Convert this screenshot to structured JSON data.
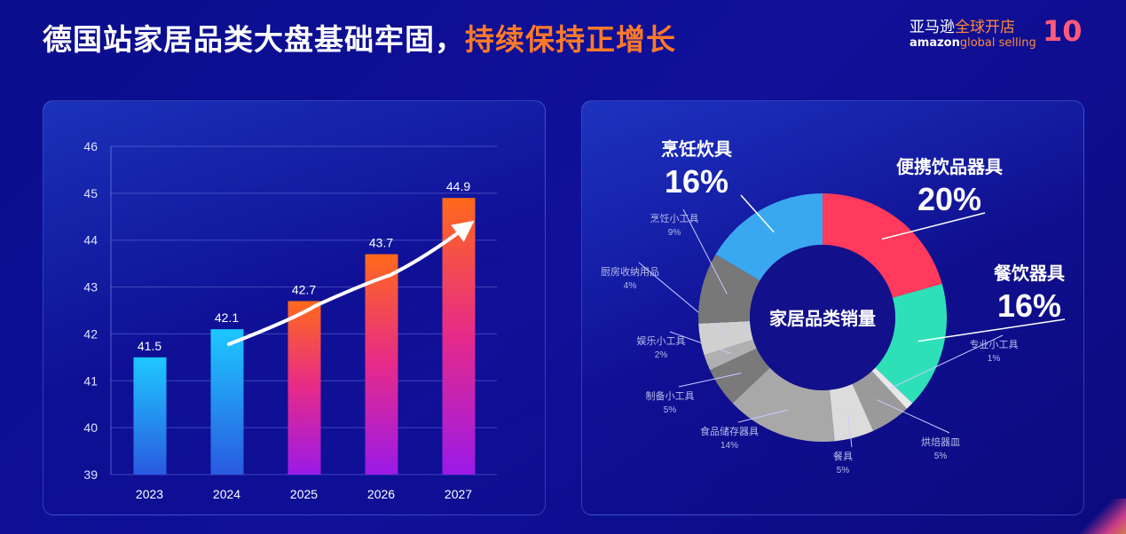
{
  "header": {
    "title_main": "德国站家居品类大盘基础牢固，",
    "title_highlight": "持续保持正增长"
  },
  "logo": {
    "cn_white": "亚马逊",
    "cn_orange": "全球开店",
    "en_brand": "amazon",
    "en_tag": "global selling",
    "anniversary": "10"
  },
  "chart_data": [
    {
      "type": "bar",
      "categories": [
        "2023",
        "2024",
        "2025",
        "2026",
        "2027"
      ],
      "values": [
        41.5,
        42.1,
        42.7,
        43.7,
        44.9
      ],
      "ylim": [
        39,
        46
      ],
      "yticks": [
        39,
        40,
        41,
        42,
        43,
        44,
        45,
        46
      ],
      "grid": true,
      "trend_arrow": true,
      "colors": {
        "early": [
          "#1ec8ff",
          "#2a5ae0"
        ],
        "late": [
          "#ff6a1a",
          "#e62a8a",
          "#9a1ae8"
        ]
      }
    },
    {
      "type": "pie",
      "donut": true,
      "center_label": "家居品类销量",
      "slices": [
        {
          "label": "便携饮品器具",
          "value": 20,
          "color": "#ff3a5c",
          "major": true
        },
        {
          "label": "餐饮器具",
          "value": 16,
          "color": "#2ee0b8",
          "major": true
        },
        {
          "label": "专业小工具",
          "value": 1,
          "color": "#e8e8e8"
        },
        {
          "label": "烘焙器皿",
          "value": 5,
          "color": "#9a9a9a"
        },
        {
          "label": "餐具",
          "value": 5,
          "color": "#dcdcdc"
        },
        {
          "label": "食品储存器具",
          "value": 14,
          "color": "#a8a8a8"
        },
        {
          "label": "制备小工具",
          "value": 5,
          "color": "#7a7a7a"
        },
        {
          "label": "娱乐小工具",
          "value": 2,
          "color": "#b0b0b0"
        },
        {
          "label": "厨房收纳用品",
          "value": 4,
          "color": "#d0d0d0"
        },
        {
          "label": "烹饪小工具",
          "value": 9,
          "color": "#787878"
        },
        {
          "label": "烹饪炊具",
          "value": 16,
          "color": "#3aa8f0",
          "major": true
        }
      ]
    }
  ]
}
